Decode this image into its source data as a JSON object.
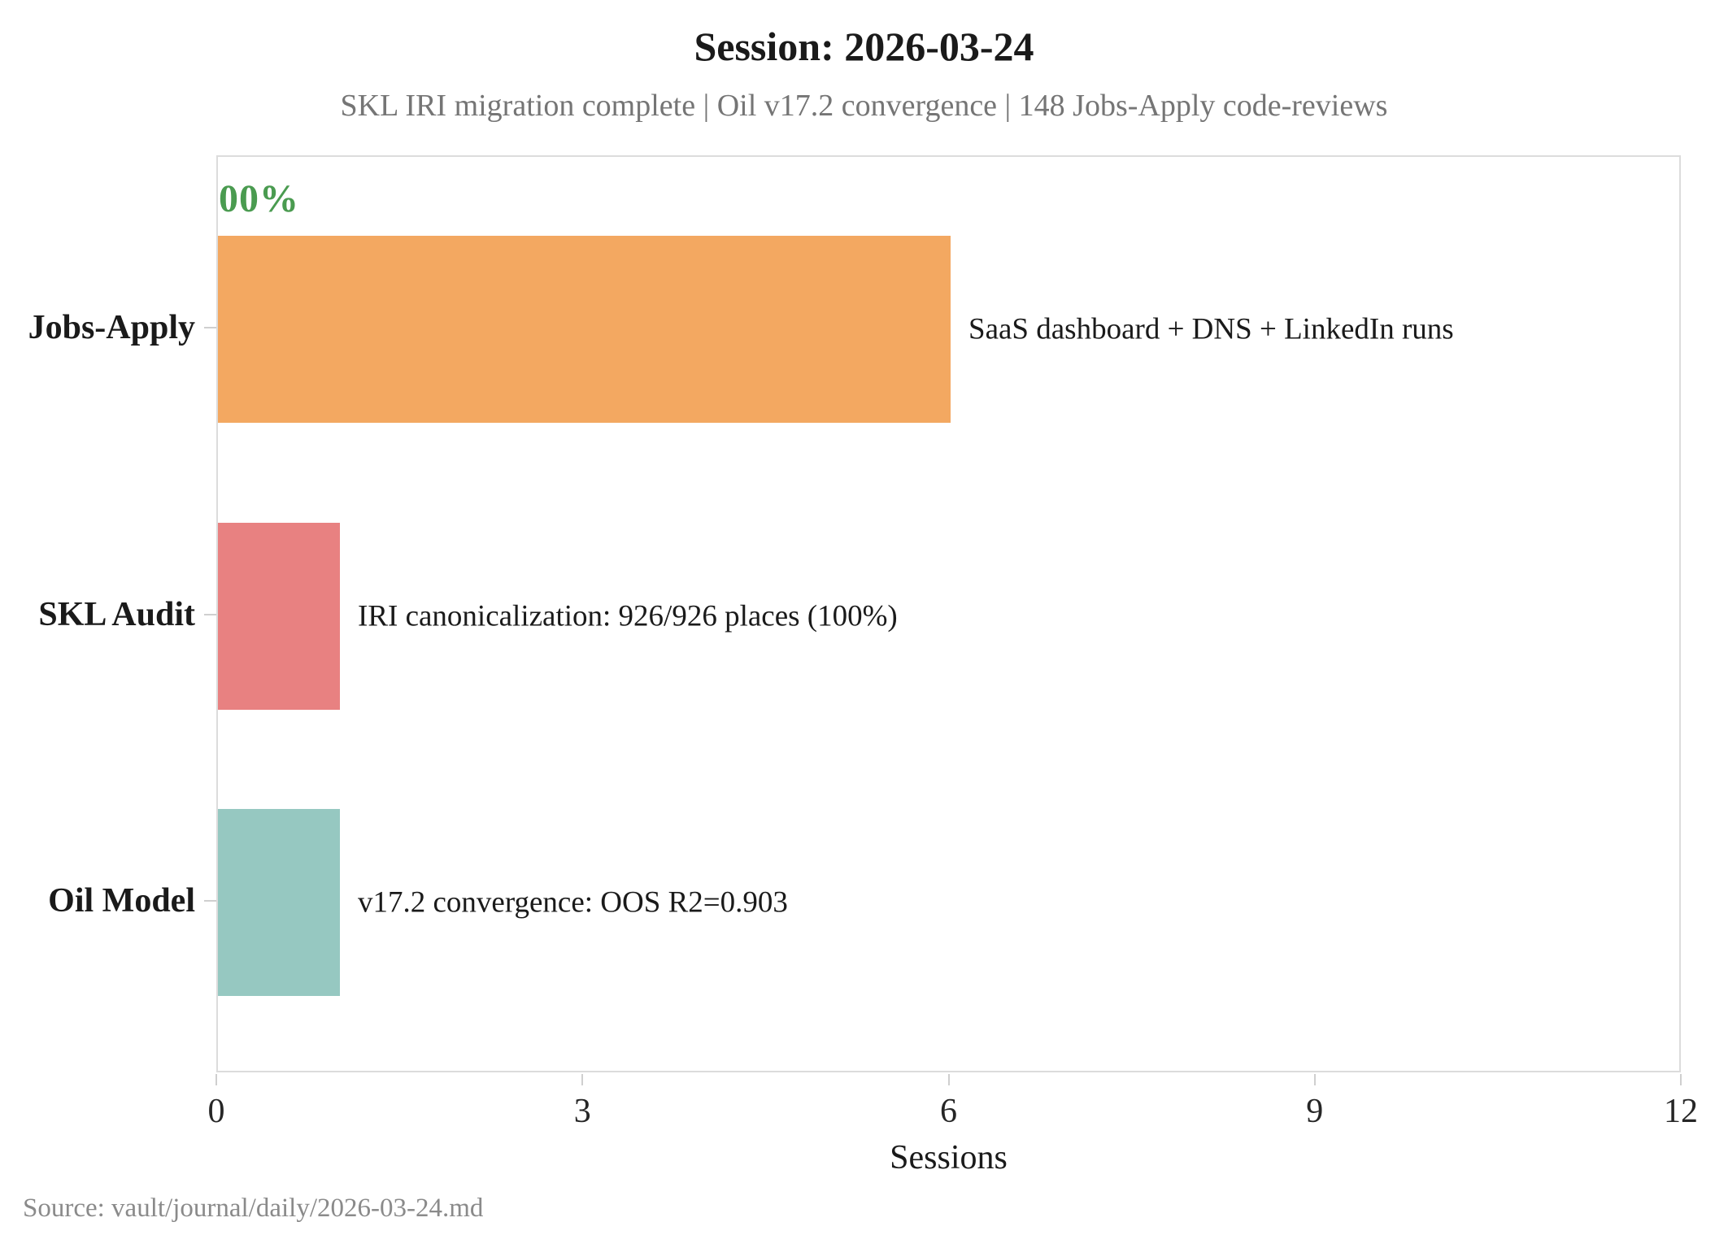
{
  "chart_data": {
    "type": "bar",
    "orientation": "horizontal",
    "title": "Session: 2026-03-24",
    "subtitle": "SKL IRI migration complete | Oil v17.2 convergence | 148 Jobs-Apply code-reviews",
    "xlabel": "Sessions",
    "xlim": [
      0,
      12
    ],
    "xticks": [
      0,
      3,
      6,
      9,
      12
    ],
    "grid": false,
    "legend": false,
    "categories": [
      "Jobs-Apply",
      "SKL Audit",
      "Oil Model"
    ],
    "values": [
      6,
      1,
      1
    ],
    "bar_colors": [
      "#f3a861",
      "#e88181",
      "#96c8c1"
    ],
    "bar_annotations": [
      "SaaS dashboard + DNS + LinkedIn runs",
      "IRI canonicalization: 926/926 places (100%)",
      "v17.2 convergence: OOS R2=0.903"
    ],
    "corner_annotation": {
      "text": "00%",
      "color": "#4a9b50"
    }
  },
  "source": {
    "text": "Source: vault/journal/daily/2026-03-24.md"
  },
  "colors": {
    "plot_border": "#dcdcdc",
    "tick": "#cfcfcf",
    "title_text": "#1a1a1a",
    "subtitle_text": "#757575",
    "source_text": "#8a8a8a"
  }
}
